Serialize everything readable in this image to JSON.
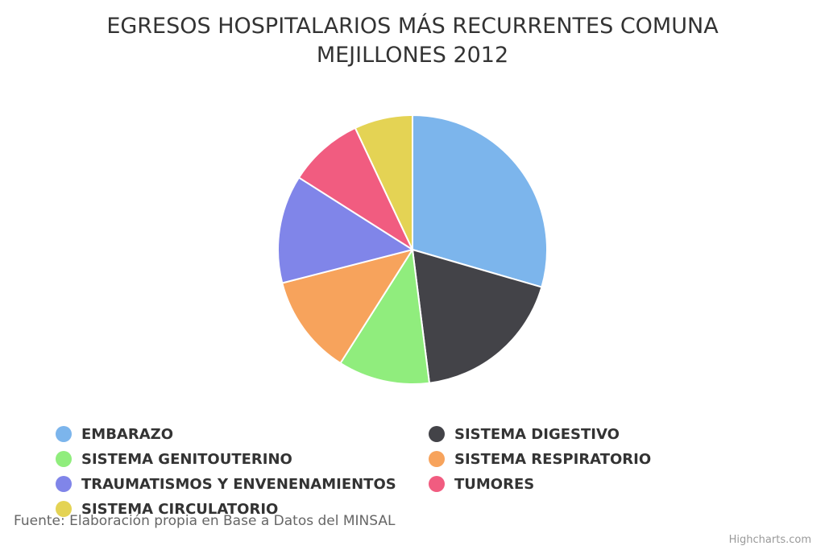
{
  "chart_data": {
    "type": "pie",
    "title_lines": [
      "EGRESOS HOSPITALARIOS MÁS RECURRENTES COMUNA",
      "MEJILLONES 2012"
    ],
    "legend_placement": "bottom",
    "unit": "%",
    "slices": [
      {
        "name": "EMBARAZO",
        "value": 29.5,
        "color": "#7cb5ec"
      },
      {
        "name": "SISTEMA DIGESTIVO",
        "value": 18.5,
        "color": "#434348"
      },
      {
        "name": "SISTEMA GENITOUTERINO",
        "value": 11.0,
        "color": "#90ed7d"
      },
      {
        "name": "SISTEMA RESPIRATORIO",
        "value": 12.0,
        "color": "#f7a35c"
      },
      {
        "name": "TRAUMATISMOS Y ENVENENAMIENTOS",
        "value": 13.0,
        "color": "#8085e9"
      },
      {
        "name": "TUMORES",
        "value": 9.0,
        "color": "#f15c80"
      },
      {
        "name": "SISTEMA CIRCULATORIO",
        "value": 7.0,
        "color": "#e4d354"
      }
    ]
  },
  "source": "Fuente: Elaboración propia en Base a Datos del MINSAL",
  "credits": "Highcharts.com"
}
